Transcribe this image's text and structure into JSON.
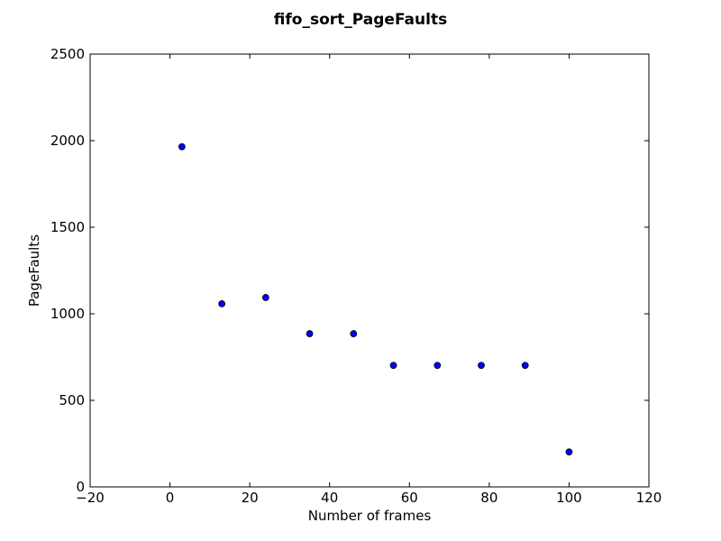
{
  "chart_data": {
    "type": "scatter",
    "title": "fifo_sort_PageFaults",
    "xlabel": "Number of frames",
    "ylabel": "PageFaults",
    "xlim": [
      -20,
      120
    ],
    "ylim": [
      0,
      2500
    ],
    "xticks": [
      -20,
      0,
      20,
      40,
      60,
      80,
      100,
      120
    ],
    "yticks": [
      0,
      500,
      1000,
      1500,
      2000,
      2500
    ],
    "xtick_labels": [
      "−20",
      "0",
      "20",
      "40",
      "60",
      "80",
      "100",
      "120"
    ],
    "ytick_labels": [
      "0",
      "500",
      "1000",
      "1500",
      "2000",
      "2500"
    ],
    "grid": false,
    "marker_color": "#0000ff",
    "series": [
      {
        "x": [
          3,
          13,
          24,
          35,
          46,
          56,
          67,
          78,
          89,
          100
        ],
        "y": [
          1965,
          1058,
          1094,
          885,
          885,
          702,
          702,
          702,
          702,
          202
        ]
      }
    ]
  }
}
